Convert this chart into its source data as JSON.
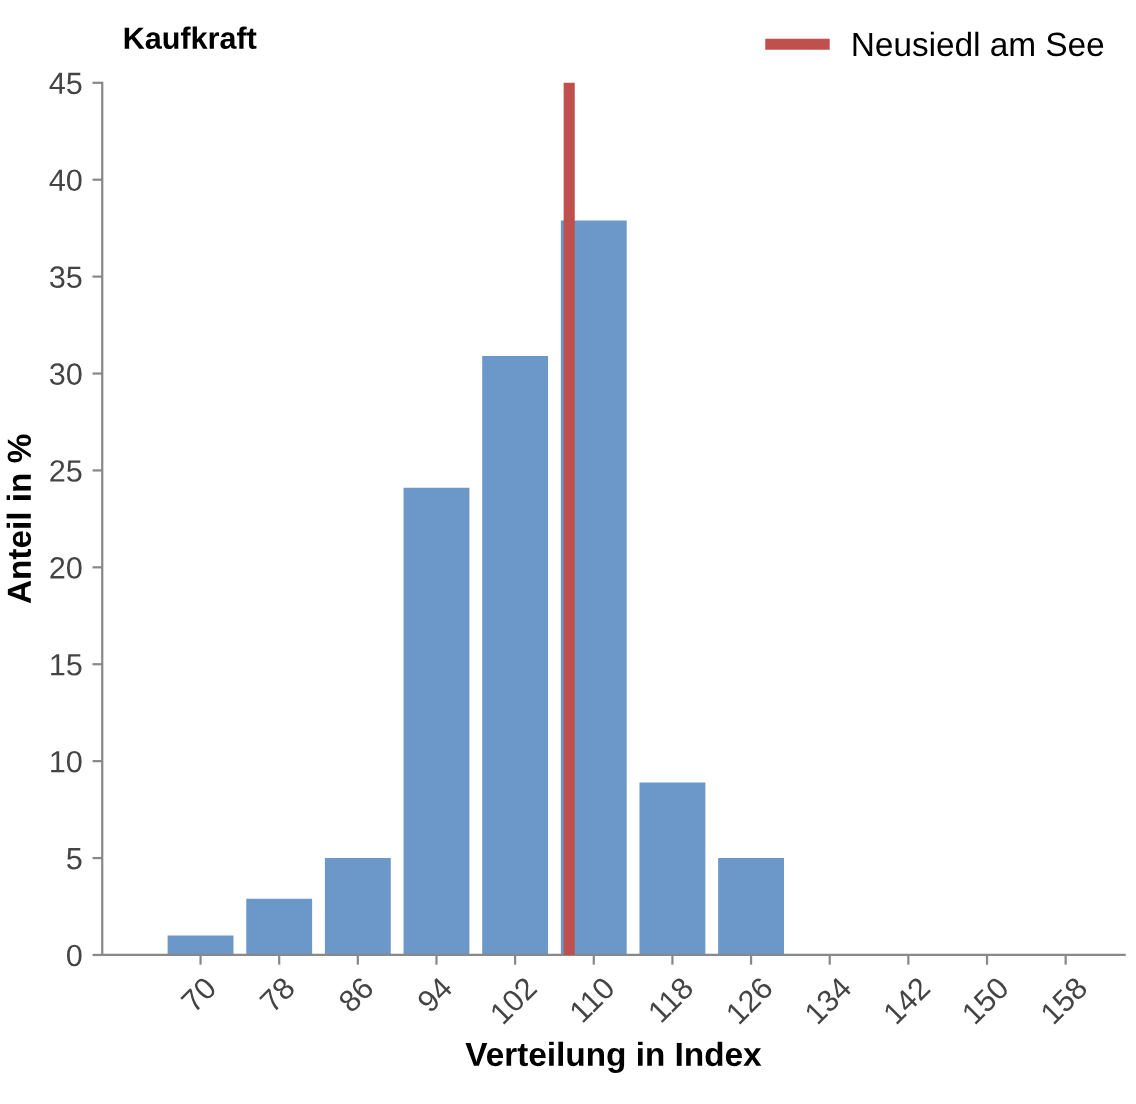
{
  "chart_data": {
    "type": "bar",
    "title": "Kaufkraft",
    "xlabel": "Verteilung in Index",
    "ylabel": "Anteil in %",
    "x": [
      70,
      78,
      86,
      94,
      102,
      110,
      118,
      126,
      134,
      142,
      150,
      158
    ],
    "values": [
      1.0,
      2.9,
      5.0,
      24.1,
      30.9,
      37.9,
      8.9,
      5.0,
      0,
      0,
      0,
      0
    ],
    "color": "#6b98c9",
    "xlim": [
      60,
      164
    ],
    "xticks": [
      70,
      78,
      86,
      94,
      102,
      110,
      118,
      126,
      134,
      142,
      150,
      158
    ],
    "ylim": [
      0,
      45
    ],
    "yticks": [
      0,
      5,
      10,
      15,
      20,
      25,
      30,
      35,
      40,
      45
    ],
    "ref_lines": [
      {
        "axis": "x",
        "value": 107.5,
        "label": "Neusiedl am See",
        "color": "#c0504d"
      }
    ],
    "legend": "top right",
    "grid": false
  }
}
